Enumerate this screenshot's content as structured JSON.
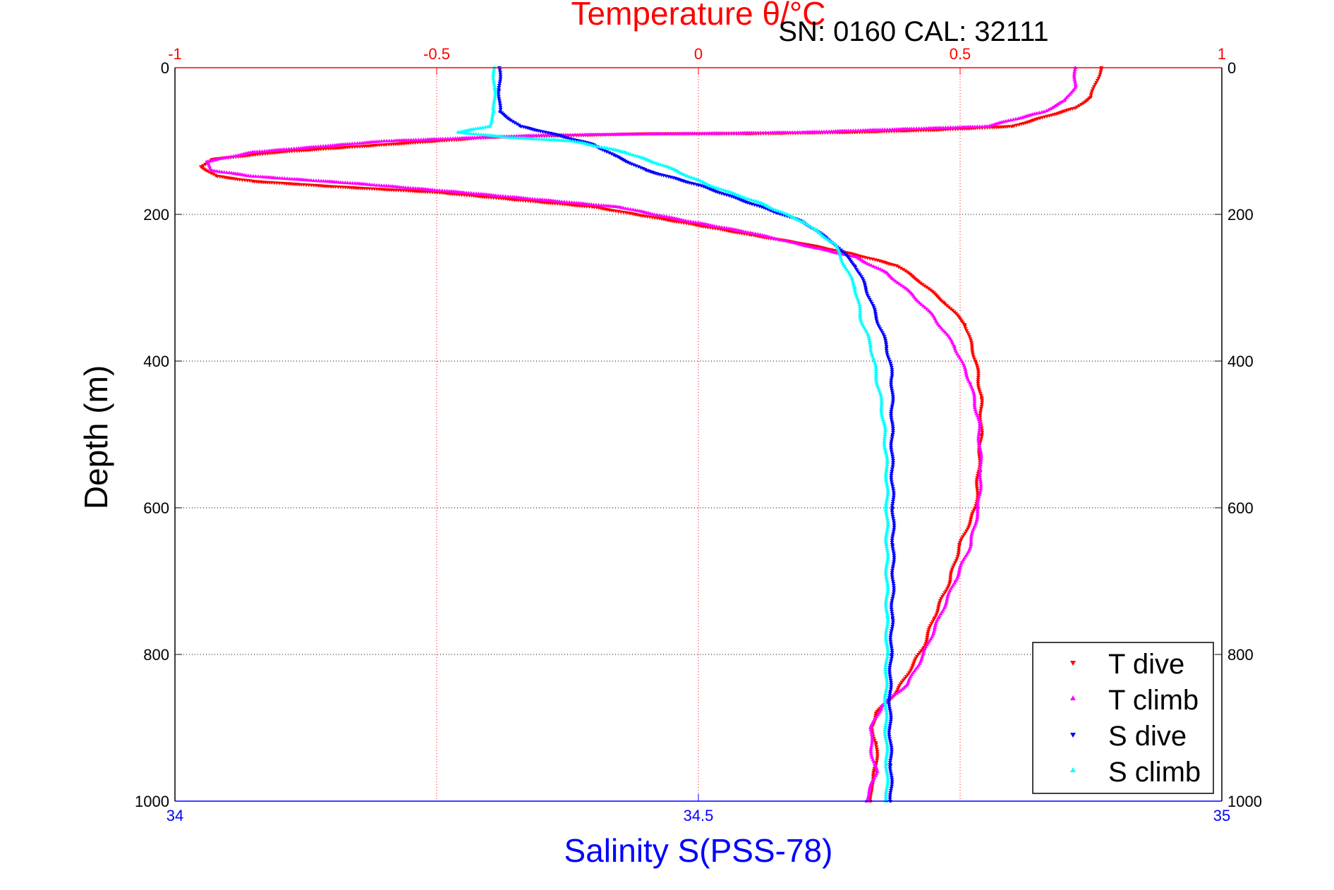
{
  "chart_data": {
    "type": "scatter",
    "title": "Temperature θ/°C",
    "annotation": "SN: 0160  CAL: 32111",
    "xlabel_bottom": "Salinity S(PSS-78)",
    "xlabel_top": "Temperature θ/°C",
    "ylabel": "Depth (m)",
    "x_bottom_lim": [
      34,
      35
    ],
    "x_top_lim": [
      -1,
      1
    ],
    "ylim": [
      1000,
      0
    ],
    "x_bottom_ticks": [
      "34",
      "34.5",
      "35"
    ],
    "x_top_ticks": [
      "-1",
      "-0.5",
      "0",
      "0.5",
      "1"
    ],
    "y_ticks_left": [
      "0",
      "200",
      "400",
      "600",
      "800",
      "1000"
    ],
    "y_ticks_right": [
      "0",
      "200",
      "400",
      "600",
      "800",
      "1000"
    ],
    "grid": true,
    "legend_position": "bottom-right",
    "series": [
      {
        "name": "T dive",
        "axis": "temperature",
        "color": "#ff0000",
        "marker": "triangle-down",
        "points": [
          [
            0.77,
            0
          ],
          [
            0.76,
            20
          ],
          [
            0.75,
            40
          ],
          [
            0.72,
            55
          ],
          [
            0.6,
            80
          ],
          [
            0.45,
            85
          ],
          [
            0.3,
            88
          ],
          [
            0.1,
            90
          ],
          [
            -0.1,
            90
          ],
          [
            -0.4,
            95
          ],
          [
            -0.6,
            105
          ],
          [
            -0.8,
            115
          ],
          [
            -0.93,
            125
          ],
          [
            -0.95,
            135
          ],
          [
            -0.92,
            148
          ],
          [
            -0.85,
            155
          ],
          [
            -0.7,
            162
          ],
          [
            -0.5,
            170
          ],
          [
            -0.35,
            180
          ],
          [
            -0.2,
            190
          ],
          [
            -0.12,
            200
          ],
          [
            0,
            215
          ],
          [
            0.1,
            228
          ],
          [
            0.2,
            240
          ],
          [
            0.3,
            255
          ],
          [
            0.38,
            270
          ],
          [
            0.42,
            290
          ],
          [
            0.47,
            320
          ],
          [
            0.51,
            350
          ],
          [
            0.53,
            400
          ],
          [
            0.54,
            450
          ],
          [
            0.54,
            500
          ],
          [
            0.535,
            550
          ],
          [
            0.53,
            600
          ],
          [
            0.5,
            650
          ],
          [
            0.48,
            700
          ],
          [
            0.45,
            750
          ],
          [
            0.43,
            790
          ],
          [
            0.38,
            850
          ],
          [
            0.34,
            880
          ],
          [
            0.33,
            900
          ],
          [
            0.34,
            920
          ],
          [
            0.34,
            950
          ],
          [
            0.33,
            980
          ],
          [
            0.33,
            1000
          ]
        ]
      },
      {
        "name": "T climb",
        "axis": "temperature",
        "color": "#ff00ff",
        "marker": "triangle-up",
        "points": [
          [
            0.72,
            0
          ],
          [
            0.72,
            25
          ],
          [
            0.7,
            45
          ],
          [
            0.66,
            60
          ],
          [
            0.55,
            80
          ],
          [
            0.2,
            88
          ],
          [
            -0.3,
            92
          ],
          [
            -0.6,
            100
          ],
          [
            -0.85,
            115
          ],
          [
            -0.94,
            128
          ],
          [
            -0.93,
            140
          ],
          [
            -0.85,
            148
          ],
          [
            -0.65,
            158
          ],
          [
            -0.45,
            170
          ],
          [
            -0.3,
            180
          ],
          [
            -0.15,
            190
          ],
          [
            -0.05,
            205
          ],
          [
            0.1,
            225
          ],
          [
            0.22,
            245
          ],
          [
            0.3,
            258
          ],
          [
            0.36,
            280
          ],
          [
            0.41,
            310
          ],
          [
            0.45,
            340
          ],
          [
            0.49,
            380
          ],
          [
            0.52,
            430
          ],
          [
            0.535,
            480
          ],
          [
            0.54,
            550
          ],
          [
            0.535,
            600
          ],
          [
            0.52,
            650
          ],
          [
            0.49,
            700
          ],
          [
            0.46,
            750
          ],
          [
            0.43,
            800
          ],
          [
            0.4,
            840
          ],
          [
            0.35,
            870
          ],
          [
            0.33,
            900
          ],
          [
            0.33,
            930
          ],
          [
            0.34,
            960
          ],
          [
            0.32,
            1000
          ]
        ]
      },
      {
        "name": "S dive",
        "axis": "salinity",
        "color": "#0000ff",
        "marker": "triangle-down",
        "points": [
          [
            34.31,
            0
          ],
          [
            34.31,
            30
          ],
          [
            34.31,
            60
          ],
          [
            34.33,
            80
          ],
          [
            34.36,
            90
          ],
          [
            34.4,
            105
          ],
          [
            34.42,
            120
          ],
          [
            34.45,
            140
          ],
          [
            34.5,
            160
          ],
          [
            34.55,
            185
          ],
          [
            34.6,
            210
          ],
          [
            34.63,
            240
          ],
          [
            34.65,
            270
          ],
          [
            34.66,
            300
          ],
          [
            34.67,
            340
          ],
          [
            34.68,
            380
          ],
          [
            34.685,
            420
          ],
          [
            34.685,
            460
          ],
          [
            34.685,
            500
          ],
          [
            34.685,
            550
          ],
          [
            34.686,
            600
          ],
          [
            34.686,
            650
          ],
          [
            34.686,
            700
          ],
          [
            34.685,
            750
          ],
          [
            34.684,
            800
          ],
          [
            34.683,
            850
          ],
          [
            34.683,
            900
          ],
          [
            34.684,
            950
          ],
          [
            34.684,
            1000
          ]
        ]
      },
      {
        "name": "S climb",
        "axis": "salinity",
        "color": "#00ffff",
        "marker": "triangle-up",
        "points": [
          [
            34.305,
            0
          ],
          [
            34.305,
            30
          ],
          [
            34.305,
            60
          ],
          [
            34.3,
            80
          ],
          [
            34.27,
            88
          ],
          [
            34.32,
            95
          ],
          [
            34.38,
            100
          ],
          [
            34.43,
            115
          ],
          [
            34.47,
            135
          ],
          [
            34.51,
            160
          ],
          [
            34.56,
            185
          ],
          [
            34.6,
            210
          ],
          [
            34.63,
            240
          ],
          [
            34.64,
            270
          ],
          [
            34.65,
            300
          ],
          [
            34.655,
            340
          ],
          [
            34.665,
            380
          ],
          [
            34.67,
            420
          ],
          [
            34.675,
            460
          ],
          [
            34.678,
            500
          ],
          [
            34.68,
            550
          ],
          [
            34.68,
            600
          ],
          [
            34.68,
            650
          ],
          [
            34.68,
            700
          ],
          [
            34.68,
            750
          ],
          [
            34.68,
            800
          ],
          [
            34.679,
            850
          ],
          [
            34.679,
            900
          ],
          [
            34.68,
            950
          ],
          [
            34.68,
            1000
          ]
        ]
      }
    ]
  }
}
